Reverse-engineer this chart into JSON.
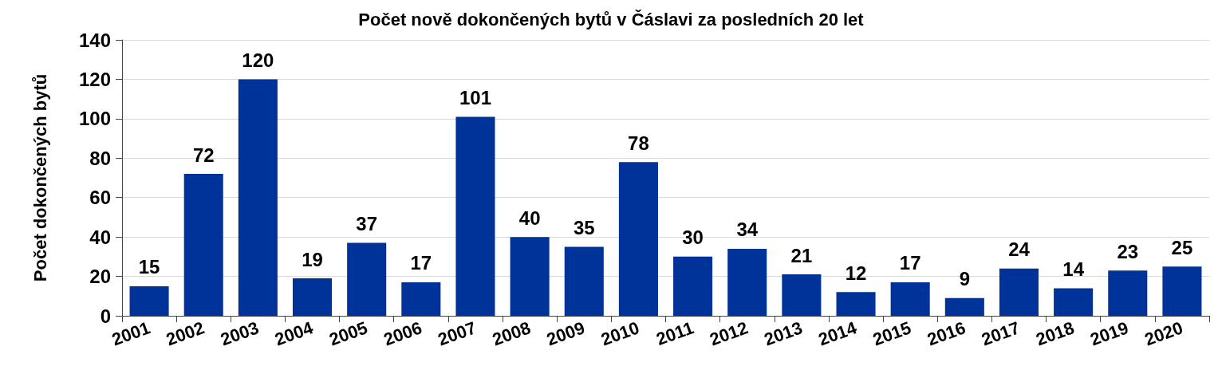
{
  "chart_data": {
    "type": "bar",
    "title": "Počet nově dokončených bytů v Čáslavi za posledních 20 let",
    "ylabel": "Počet dokončených bytů",
    "categories": [
      "2001",
      "2002",
      "2003",
      "2004",
      "2005",
      "2006",
      "2007",
      "2008",
      "2009",
      "2010",
      "2011",
      "2012",
      "2013",
      "2014",
      "2015",
      "2016",
      "2017",
      "2018",
      "2019",
      "2020"
    ],
    "values": [
      15,
      72,
      120,
      19,
      37,
      17,
      101,
      40,
      35,
      78,
      30,
      34,
      21,
      12,
      17,
      9,
      24,
      14,
      23,
      25
    ],
    "color": "#003399",
    "ylim": [
      0,
      140
    ],
    "yticks": [
      0,
      20,
      40,
      60,
      80,
      100,
      120,
      140
    ],
    "grid": "y",
    "data_labels": true
  }
}
